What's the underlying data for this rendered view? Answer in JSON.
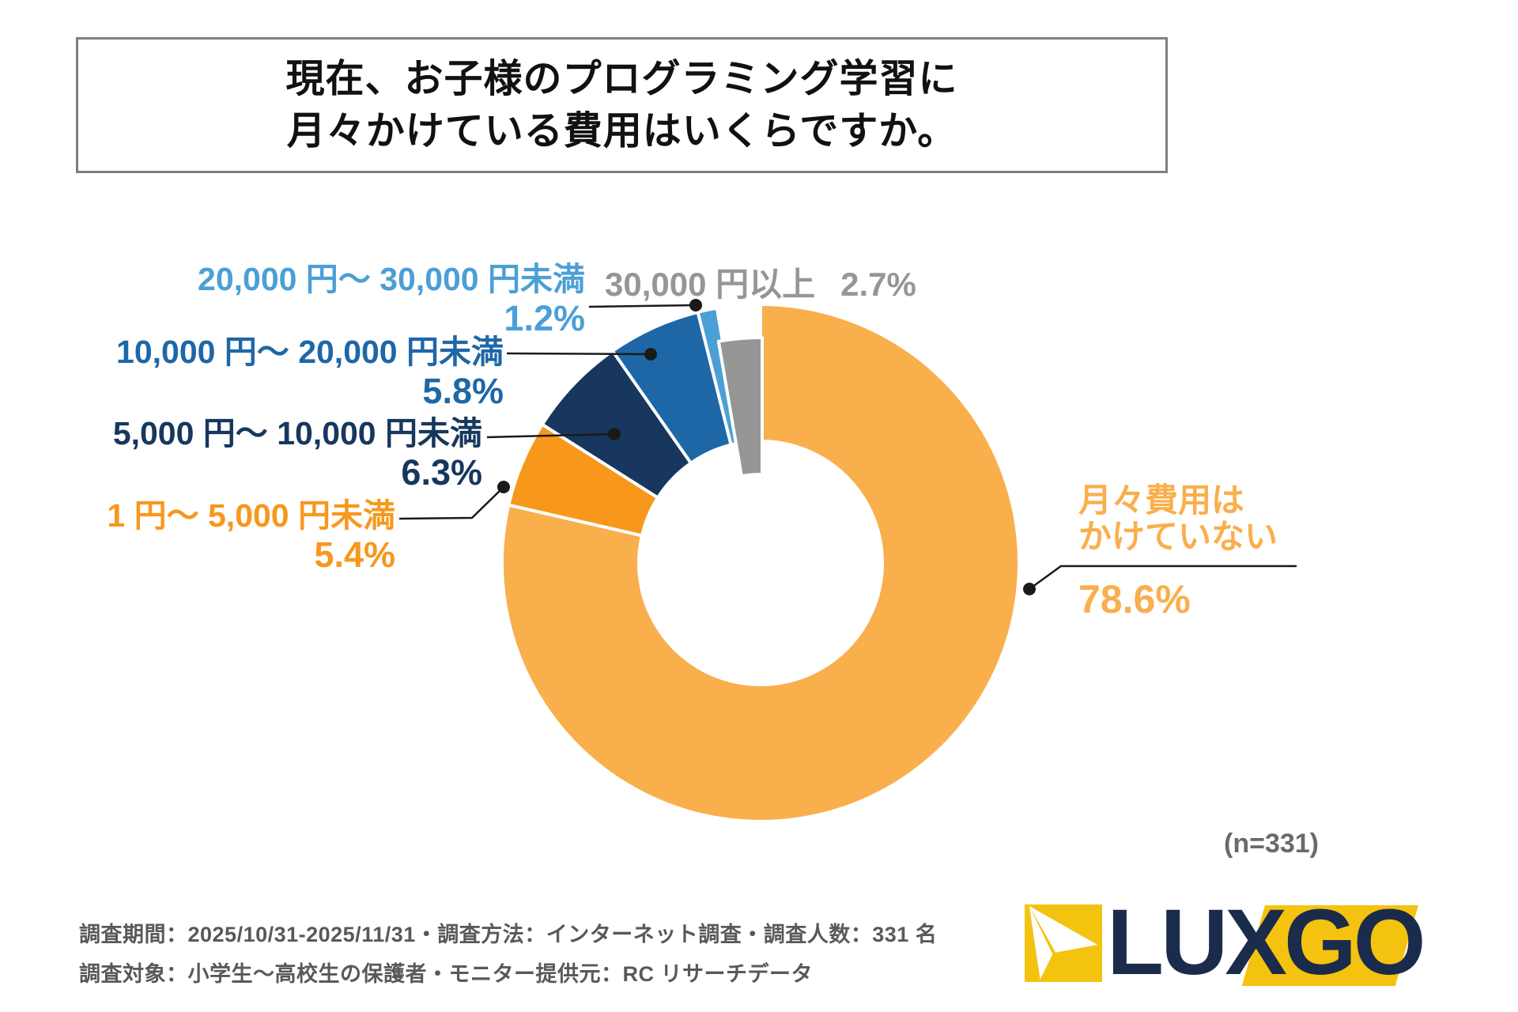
{
  "title": {
    "line1": "現在、お子様のプログラミング学習に",
    "line2": "月々かけている費用はいくらですか。"
  },
  "chart_data": {
    "type": "pie",
    "donut": true,
    "start_angle_deg": 0,
    "clockwise": true,
    "sample_note": "(n=331)",
    "slices": [
      {
        "label": "月々費用はかけていない",
        "label_line1": "月々費用は",
        "label_line2": "かけていない",
        "value": 78.6,
        "pct_label": "78.6%",
        "color": "#F9AF4C"
      },
      {
        "label": "1 円～ 5,000 円未満",
        "value": 5.4,
        "pct_label": "5.4%",
        "color": "#F7981D"
      },
      {
        "label": "5,000 円～ 10,000 円未満",
        "value": 6.3,
        "pct_label": "6.3%",
        "color": "#17375E"
      },
      {
        "label": "10,000 円～ 20,000 円未満",
        "value": 5.8,
        "pct_label": "5.8%",
        "color": "#1E67A7"
      },
      {
        "label": "20,000 円～ 30,000 円未満",
        "value": 1.2,
        "pct_label": "1.2%",
        "color": "#4C9FD6"
      },
      {
        "label": "30,000 円以上",
        "value": 2.7,
        "pct_label": "2.7%",
        "color": "#969696",
        "recessed": true
      }
    ]
  },
  "footer": {
    "line1": "調査期間：2025/10/31-2025/11/31・調査方法：インターネット調査・調査人数：331 名",
    "line2": "調査対象：小学生～高校生の保護者・モニター提供元：RC リサーチデータ"
  },
  "logo": {
    "text": "LUXGO",
    "navy": "#1B2B4B",
    "yellow": "#F4C30F"
  }
}
